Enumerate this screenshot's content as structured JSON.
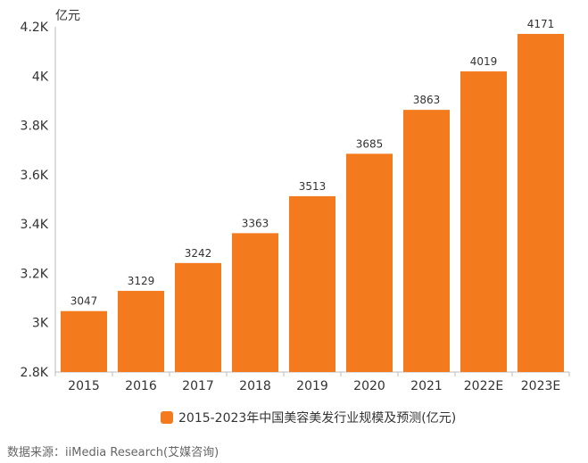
{
  "chart_data": {
    "type": "bar",
    "unit_label": "亿元",
    "categories": [
      "2015",
      "2016",
      "2017",
      "2018",
      "2019",
      "2020",
      "2021",
      "2022E",
      "2023E"
    ],
    "series": [
      {
        "name": "2015-2023年中国美容美发行业规模及预测(亿元)",
        "values": [
          3047,
          3129,
          3242,
          3363,
          3513,
          3685,
          3863,
          4019,
          4171
        ]
      }
    ],
    "data_labels": [
      "3047",
      "3129",
      "3242",
      "3363",
      "3513",
      "3685",
      "3863",
      "4019",
      "4171"
    ],
    "yticks": [
      2800,
      3000,
      3200,
      3400,
      3600,
      3800,
      4000,
      4200
    ],
    "ytick_labels": [
      "2.8K",
      "3K",
      "3.2K",
      "3.4K",
      "3.6K",
      "3.8K",
      "4K",
      "4.2K"
    ],
    "ylim": [
      2800,
      4200
    ],
    "grid": false,
    "legend_position": "bottom",
    "color": "#F47A1E"
  },
  "source": "数据来源：iiMedia Research(艾媒咨询)"
}
